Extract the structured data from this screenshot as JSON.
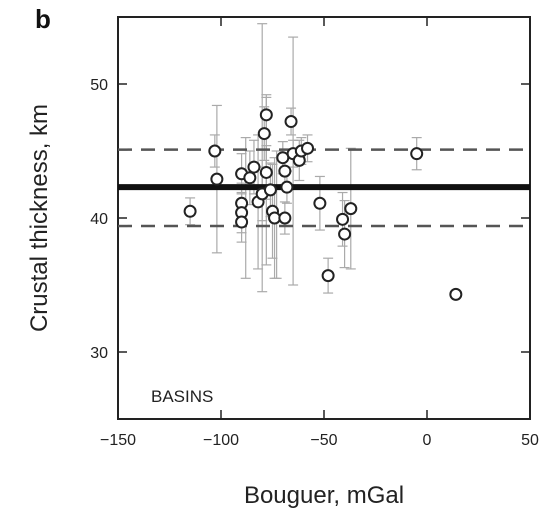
{
  "chart_data": {
    "type": "scatter",
    "panel_label": "b",
    "xlabel": "Bouguer, mGal",
    "ylabel": "Crustal thickness, km",
    "xlim": [
      -150,
      50
    ],
    "ylim": [
      25,
      55
    ],
    "xticks": [
      -150,
      -100,
      -50,
      0,
      50
    ],
    "yticks": [
      30,
      40,
      50
    ],
    "annotation": "BASINS",
    "grid": false,
    "reference_lines": [
      {
        "style": "solid",
        "y": 42.3
      },
      {
        "style": "dashed",
        "y": 45.1
      },
      {
        "style": "dashed",
        "y": 39.4
      }
    ],
    "points": [
      {
        "x": -115,
        "y": 40.5,
        "err": 1.0
      },
      {
        "x": -103,
        "y": 45.0,
        "err": 1.2
      },
      {
        "x": -102,
        "y": 42.9,
        "err": 5.5
      },
      {
        "x": -90,
        "y": 43.3,
        "err": 1.5
      },
      {
        "x": -90,
        "y": 41.1,
        "err": 1.5
      },
      {
        "x": -90,
        "y": 40.4,
        "err": 1.5
      },
      {
        "x": -90,
        "y": 39.7,
        "err": 1.5
      },
      {
        "x": -86,
        "y": 43.0,
        "err": 2.0
      },
      {
        "x": -84,
        "y": 43.8,
        "err": 2.0
      },
      {
        "x": -82,
        "y": 41.2,
        "err": 5.0
      },
      {
        "x": -80,
        "y": 41.8,
        "err": 2.0
      },
      {
        "x": -79,
        "y": 46.3,
        "err": 2.0
      },
      {
        "x": -78,
        "y": 47.7,
        "err": 1.5
      },
      {
        "x": -78,
        "y": 43.4,
        "err": 2.0
      },
      {
        "x": -76,
        "y": 42.1,
        "err": 2.0
      },
      {
        "x": -75,
        "y": 40.5,
        "err": 3.5
      },
      {
        "x": -74,
        "y": 40.0,
        "err": 4.5
      },
      {
        "x": -70,
        "y": 44.5,
        "err": 1.2
      },
      {
        "x": -69,
        "y": 40.0,
        "err": 1.2
      },
      {
        "x": -69,
        "y": 43.5,
        "err": 1.0
      },
      {
        "x": -68,
        "y": 42.3,
        "err": 1.2
      },
      {
        "x": -66,
        "y": 47.2,
        "err": 1.0
      },
      {
        "x": -65,
        "y": 44.8,
        "err": 1.0
      },
      {
        "x": -62,
        "y": 44.3,
        "err": 1.5
      },
      {
        "x": -61,
        "y": 45.0,
        "err": 1.0
      },
      {
        "x": -58,
        "y": 45.2,
        "err": 1.0
      },
      {
        "x": -52,
        "y": 41.1,
        "err": 2.0
      },
      {
        "x": -48,
        "y": 35.7,
        "err": 1.3
      },
      {
        "x": -41,
        "y": 39.9,
        "err": 2.0
      },
      {
        "x": -40,
        "y": 38.8,
        "err": 2.5
      },
      {
        "x": -37,
        "y": 40.7,
        "err": 4.5
      },
      {
        "x": -5,
        "y": 44.8,
        "err": 1.2
      },
      {
        "x": 14,
        "y": 34.3,
        "err": 0
      }
    ],
    "wide_error_points": [
      {
        "x": -80,
        "ylo": 34.5,
        "yhi": 54.5
      },
      {
        "x": -65,
        "ylo": 35.0,
        "yhi": 53.5
      },
      {
        "x": -78,
        "ylo": 36.5,
        "yhi": 49.0
      },
      {
        "x": -88,
        "ylo": 35.5,
        "yhi": 46.0
      },
      {
        "x": -73,
        "ylo": 35.5,
        "yhi": 45.0
      }
    ]
  },
  "colors": {
    "axis": "#222222",
    "marker_fill": "#ffffff",
    "marker_stroke": "#222222",
    "errorbar": "#aaaaaa",
    "reference": "#111111",
    "dashed": "#555555"
  }
}
